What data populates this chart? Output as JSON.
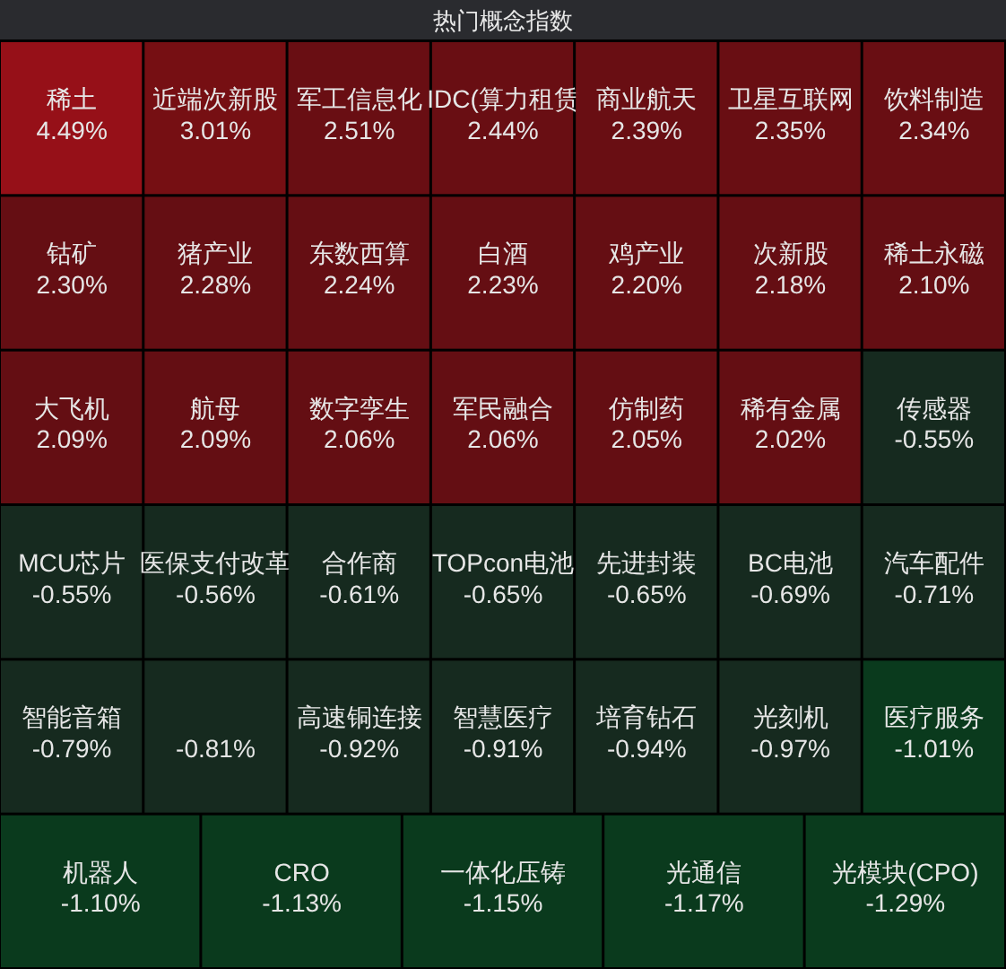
{
  "chart_data": {
    "type": "other",
    "title": "热门概念指数",
    "categories": [
      "稀土",
      "近端次新股",
      "军工信息化",
      "IDC(算力租赁",
      "商业航天",
      "卫星互联网",
      "饮料制造",
      "钴矿",
      "猪产业",
      "东数西算",
      "白酒",
      "鸡产业",
      "次新股",
      "稀土永磁",
      "大飞机",
      "航母",
      "数字孪生",
      "军民融合",
      "仿制药",
      "稀有金属",
      "传感器",
      "MCU芯片",
      "医保支付改革",
      "合作商",
      "TOPcon电池",
      "先进封装",
      "BC电池",
      "汽车配件",
      "智能音箱",
      null,
      "高速铜连接",
      "智慧医疗",
      "培育钻石",
      "光刻机",
      "医疗服务",
      "机器人",
      "CRO",
      "一体化压铸",
      "光通信",
      "光模块(CPO)"
    ],
    "values": [
      4.49,
      3.01,
      2.51,
      2.44,
      2.39,
      2.35,
      2.34,
      2.3,
      2.28,
      2.24,
      2.23,
      2.2,
      2.18,
      2.1,
      2.09,
      2.09,
      2.06,
      2.06,
      2.05,
      2.02,
      -0.55,
      -0.55,
      -0.56,
      -0.61,
      -0.65,
      -0.65,
      -0.69,
      -0.71,
      -0.79,
      -0.81,
      -0.92,
      -0.91,
      -0.94,
      -0.97,
      -1.01,
      -1.1,
      -1.13,
      -1.15,
      -1.17,
      -1.29
    ],
    "value_labels": [
      "4.49%",
      "3.01%",
      "2.51%",
      "2.44%",
      "2.39%",
      "2.35%",
      "2.34%",
      "2.30%",
      "2.28%",
      "2.24%",
      "2.23%",
      "2.20%",
      "2.18%",
      "2.10%",
      "2.09%",
      "2.09%",
      "2.06%",
      "2.06%",
      "2.05%",
      "2.02%",
      "-0.55%",
      "-0.55%",
      "-0.56%",
      "-0.61%",
      "-0.65%",
      "-0.65%",
      "-0.69%",
      "-0.71%",
      "-0.79%",
      "-0.81%",
      "-0.92%",
      "-0.91%",
      "-0.94%",
      "-0.97%",
      "-1.01%",
      "-1.10%",
      "-1.13%",
      "-1.15%",
      "-1.17%",
      "-1.29%"
    ],
    "colors": [
      "#961018",
      "#7a1014",
      "#6e0f14",
      "#6e0f14",
      "#6e0f14",
      "#6e0f14",
      "#6e0f14",
      "#6a0f14",
      "#6a0f14",
      "#6a0f14",
      "#6a0f14",
      "#6a0f14",
      "#6a0f14",
      "#6a0f14",
      "#6a0f14",
      "#6a0f14",
      "#6a0f14",
      "#6a0f14",
      "#6a0f14",
      "#6a0f14",
      "#182e22",
      "#182e22",
      "#182e22",
      "#182e22",
      "#182e22",
      "#182e22",
      "#182e22",
      "#182e22",
      "#182e22",
      "#182e22",
      "#182e22",
      "#182e22",
      "#182e22",
      "#182e22",
      "#0b3f1f",
      "#0b3f1f",
      "#0b3f1f",
      "#0b3f1f",
      "#0b3f1f",
      "#0b3f1f"
    ]
  }
}
